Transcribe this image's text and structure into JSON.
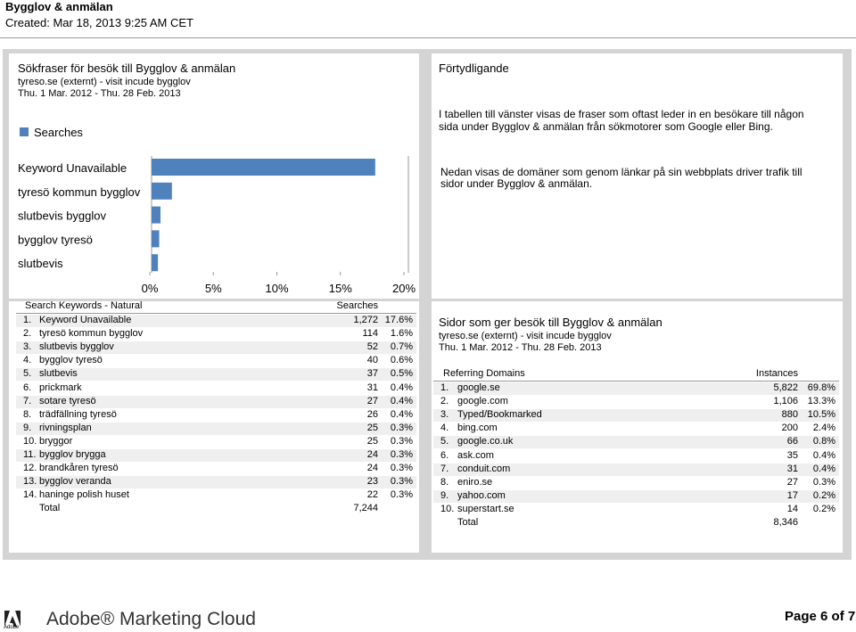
{
  "header": {
    "title": "Bygglov & anmälan",
    "created": "Created: Mar 18, 2013  9:25 AM CET"
  },
  "left_panel": {
    "title": "Sökfraser för besök till Bygglov & anmälan",
    "source": "tyreso.se (externt) - visit incude bygglov",
    "dates": "Thu.  1 Mar. 2012 - Thu. 28 Feb. 2013",
    "chart": {
      "type": "bar",
      "orientation": "horizontal",
      "color": "#4f81bd",
      "legend": "Searches",
      "categories": [
        "Keyword Unavailable",
        "tyresö kommun bygglov",
        "slutbevis bygglov",
        "bygglov tyresö",
        "slutbevis"
      ],
      "values": [
        17.6,
        1.6,
        0.7,
        0.6,
        0.5
      ],
      "xlim": [
        0,
        20
      ],
      "xticks": [
        {
          "value": 0,
          "label": "0%"
        },
        {
          "value": 5,
          "label": "5%"
        },
        {
          "value": 10,
          "label": "10%"
        },
        {
          "value": 15,
          "label": "15%"
        },
        {
          "value": 20,
          "label": "20%"
        }
      ]
    }
  },
  "left_table": {
    "headers": [
      "Search Keywords - Natural",
      "Searches"
    ],
    "rows": [
      [
        "1.",
        "Keyword Unavailable",
        "1,272",
        "17.6%"
      ],
      [
        "2.",
        "tyresö kommun bygglov",
        "114",
        "1.6%"
      ],
      [
        "3.",
        "slutbevis bygglov",
        "52",
        "0.7%"
      ],
      [
        "4.",
        "bygglov tyresö",
        "40",
        "0.6%"
      ],
      [
        "5.",
        "slutbevis",
        "37",
        "0.5%"
      ],
      [
        "6.",
        "prickmark",
        "31",
        "0.4%"
      ],
      [
        "7.",
        "sotare tyresö",
        "27",
        "0.4%"
      ],
      [
        "8.",
        "trädfällning tyresö",
        "26",
        "0.4%"
      ],
      [
        "9.",
        "rivningsplan",
        "25",
        "0.3%"
      ],
      [
        "10.",
        "bryggor",
        "25",
        "0.3%"
      ],
      [
        "11.",
        "bygglov brygga",
        "24",
        "0.3%"
      ],
      [
        "12.",
        "brandkåren tyresö",
        "24",
        "0.3%"
      ],
      [
        "13.",
        "bygglov veranda",
        "23",
        "0.3%"
      ],
      [
        "14.",
        "haninge polish huset",
        "22",
        "0.3%"
      ]
    ],
    "total": [
      "Total",
      "7,244"
    ]
  },
  "right_panel": {
    "title": "Förtydligande",
    "paragraph_1": "I tabellen till vänster visas de fraser som oftast leder in en besökare till någon sida under Bygglov & anmälan från sökmotorer som Google eller Bing.",
    "paragraph_2": "Nedan visas de domäner som genom länkar på sin webbplats driver trafik till sidor under Bygglov & anmälan."
  },
  "right_table": {
    "title": "Sidor som ger besök till Bygglov & anmälan",
    "source": "tyreso.se (externt) - visit incude bygglov",
    "dates": "Thu.  1 Mar. 2012 - Thu. 28 Feb. 2013",
    "headers": [
      "Referring Domains",
      "Instances"
    ],
    "rows": [
      [
        "1.",
        "google.se",
        "5,822",
        "69.8%"
      ],
      [
        "2.",
        "google.com",
        "1,106",
        "13.3%"
      ],
      [
        "3.",
        "Typed/Bookmarked",
        "880",
        "10.5%"
      ],
      [
        "4.",
        "bing.com",
        "200",
        "2.4%"
      ],
      [
        "5.",
        "google.co.uk",
        "66",
        "0.8%"
      ],
      [
        "6.",
        "ask.com",
        "35",
        "0.4%"
      ],
      [
        "7.",
        "conduit.com",
        "31",
        "0.4%"
      ],
      [
        "8.",
        "eniro.se",
        "27",
        "0.3%"
      ],
      [
        "9.",
        "yahoo.com",
        "17",
        "0.2%"
      ],
      [
        "10.",
        "superstart.se",
        "14",
        "0.2%"
      ]
    ],
    "total": [
      "Total",
      "8,346"
    ]
  },
  "footer": {
    "logo_text": "Adobe",
    "brand": "Adobe® Marketing Cloud",
    "page": "Page 6 of 7"
  }
}
